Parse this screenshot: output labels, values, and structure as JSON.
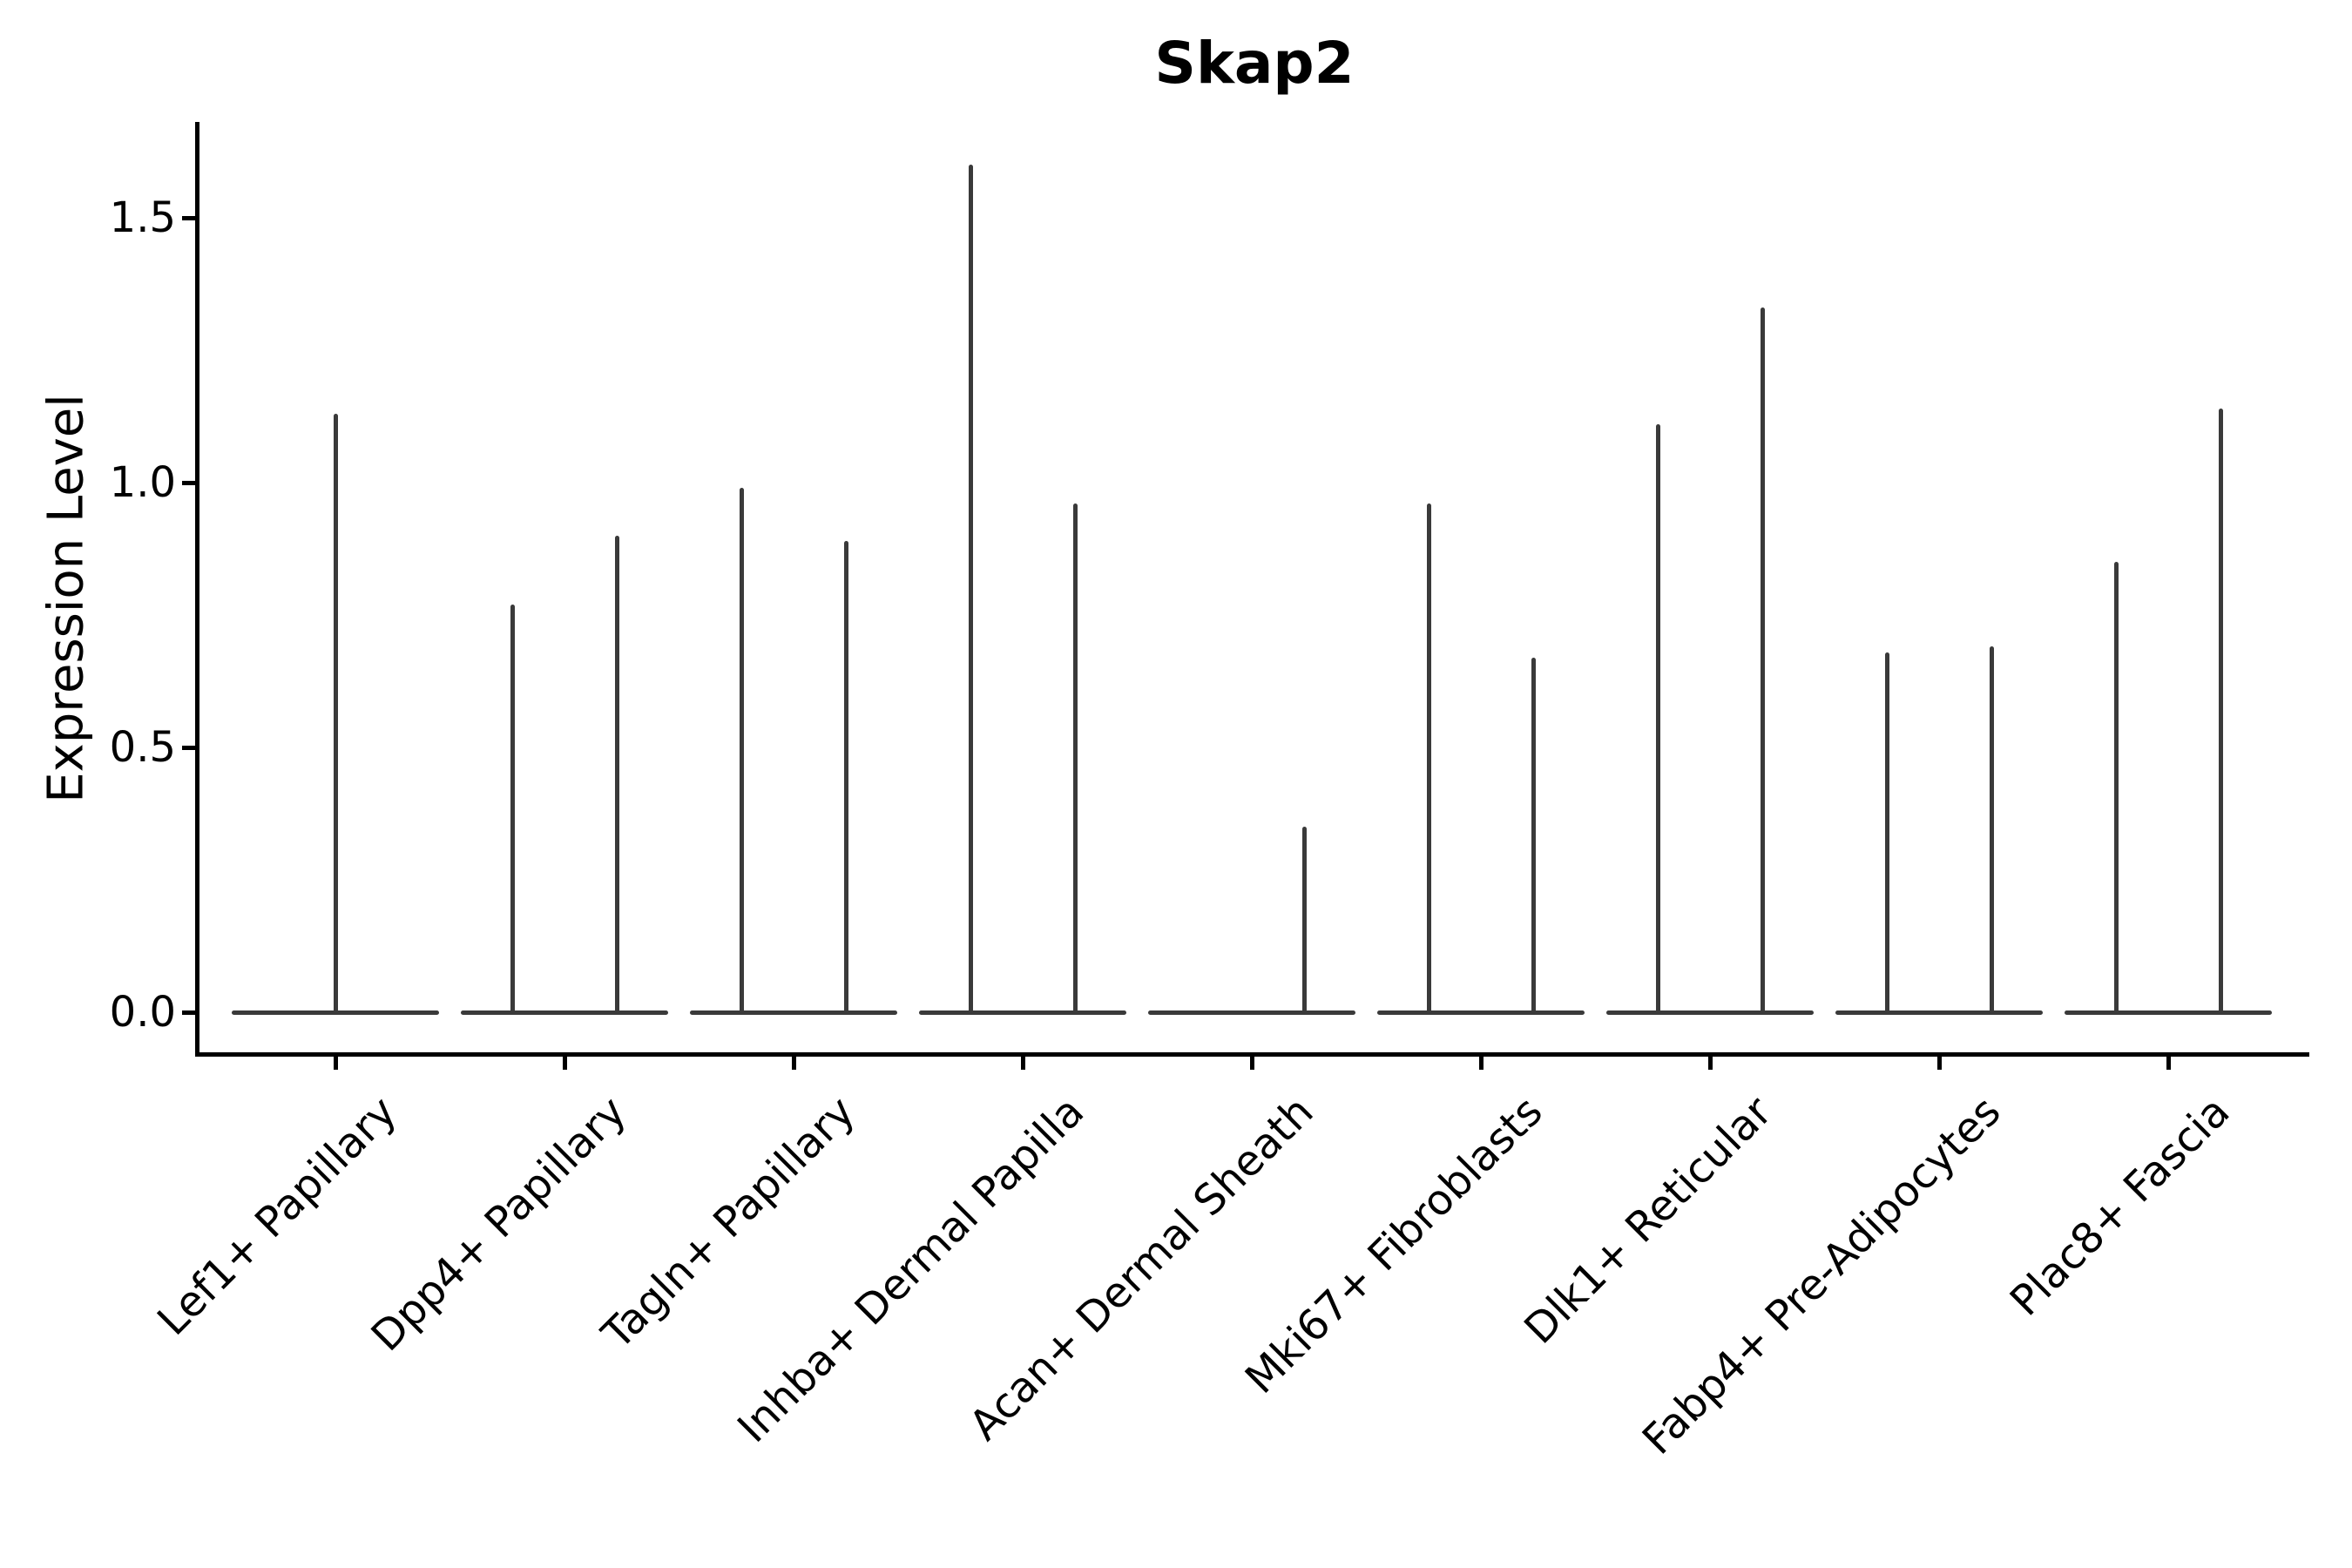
{
  "title": "Skap2",
  "axes": {
    "ylabel": "Expression Level",
    "ytick_labels": [
      "0.0",
      "0.5",
      "1.0",
      "1.5"
    ]
  },
  "colors": {
    "violin": "#3a3a3a",
    "axis": "#000000",
    "background": "#ffffff",
    "text": "#000000"
  },
  "chart_data": {
    "type": "violin",
    "title": "Skap2",
    "xlabel": "",
    "ylabel": "Expression Level",
    "yticks": [
      0.0,
      0.5,
      1.0,
      1.5
    ],
    "ylim": [
      -0.08,
      1.68
    ],
    "grid": false,
    "legend": "none",
    "style": "Seurat-like stacked-violin column; each violin collapses to a flat base at 0 with a thin vertical density spike reaching the max expression value",
    "categories": [
      "Lef1+ Papillary",
      "Dpp4+ Papillary",
      "Tagln+ Papillary",
      "Inhba+ Dermal Papilla",
      "Acan+ Dermal Sheath",
      "Mki67+ Fibroblasts",
      "Dlk1+ Reticular",
      "Fabp4+ Pre-Adipocytes",
      "Plac8+ Fascia"
    ],
    "violins": [
      {
        "category": "Lef1+ Papillary",
        "baseline_value": 0,
        "spikes": [
          {
            "position": "center",
            "max": 1.13
          }
        ]
      },
      {
        "category": "Dpp4+ Papillary",
        "baseline_value": 0,
        "spikes": [
          {
            "position": "left",
            "max": 0.77
          },
          {
            "position": "right",
            "max": 0.9
          }
        ]
      },
      {
        "category": "Tagln+ Papillary",
        "baseline_value": 0,
        "spikes": [
          {
            "position": "left",
            "max": 0.99
          },
          {
            "position": "right",
            "max": 0.89
          }
        ]
      },
      {
        "category": "Inhba+ Dermal Papilla",
        "baseline_value": 0,
        "spikes": [
          {
            "position": "left",
            "max": 1.6
          },
          {
            "position": "right",
            "max": 0.96
          }
        ]
      },
      {
        "category": "Acan+ Dermal Sheath",
        "baseline_value": 0,
        "spikes": [
          {
            "position": "right",
            "max": 0.35
          }
        ]
      },
      {
        "category": "Mki67+ Fibroblasts",
        "baseline_value": 0,
        "spikes": [
          {
            "position": "left",
            "max": 0.96
          },
          {
            "position": "right",
            "max": 0.67
          }
        ]
      },
      {
        "category": "Dlk1+ Reticular",
        "baseline_value": 0,
        "spikes": [
          {
            "position": "left",
            "max": 1.11
          },
          {
            "position": "right",
            "max": 1.33
          }
        ]
      },
      {
        "category": "Fabp4+ Pre-Adipocytes",
        "baseline_value": 0,
        "spikes": [
          {
            "position": "left",
            "max": 0.68
          },
          {
            "position": "right",
            "max": 0.69
          }
        ]
      },
      {
        "category": "Plac8+ Fascia",
        "baseline_value": 0,
        "spikes": [
          {
            "position": "left",
            "max": 0.85
          },
          {
            "position": "right",
            "max": 1.14
          }
        ]
      }
    ]
  }
}
